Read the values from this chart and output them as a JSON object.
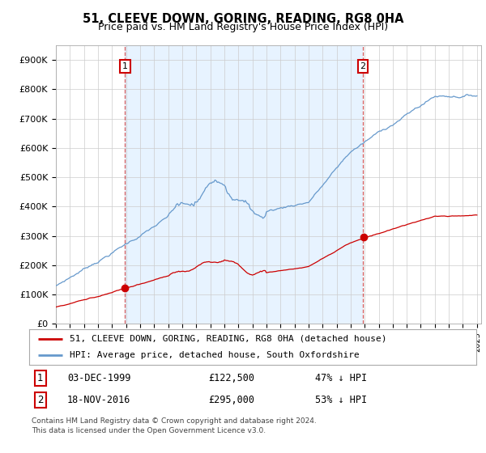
{
  "title": "51, CLEEVE DOWN, GORING, READING, RG8 0HA",
  "subtitle": "Price paid vs. HM Land Registry's House Price Index (HPI)",
  "ylim": [
    0,
    950000
  ],
  "yticks": [
    0,
    100000,
    200000,
    300000,
    400000,
    500000,
    600000,
    700000,
    800000,
    900000
  ],
  "ytick_labels": [
    "£0",
    "£100K",
    "£200K",
    "£300K",
    "£400K",
    "£500K",
    "£600K",
    "£700K",
    "£800K",
    "£900K"
  ],
  "house_color": "#cc0000",
  "hpi_color": "#6699cc",
  "hpi_fill_color": "#ddeeff",
  "sale1_year": 1999.92,
  "sale1_price": 122500,
  "sale2_year": 2016.88,
  "sale2_price": 295000,
  "legend_house": "51, CLEEVE DOWN, GORING, READING, RG8 0HA (detached house)",
  "legend_hpi": "HPI: Average price, detached house, South Oxfordshire",
  "footer1": "Contains HM Land Registry data © Crown copyright and database right 2024.",
  "footer2": "This data is licensed under the Open Government Licence v3.0.",
  "background_color": "#ffffff",
  "grid_color": "#cccccc",
  "xmin": 1995,
  "xmax": 2025.3
}
